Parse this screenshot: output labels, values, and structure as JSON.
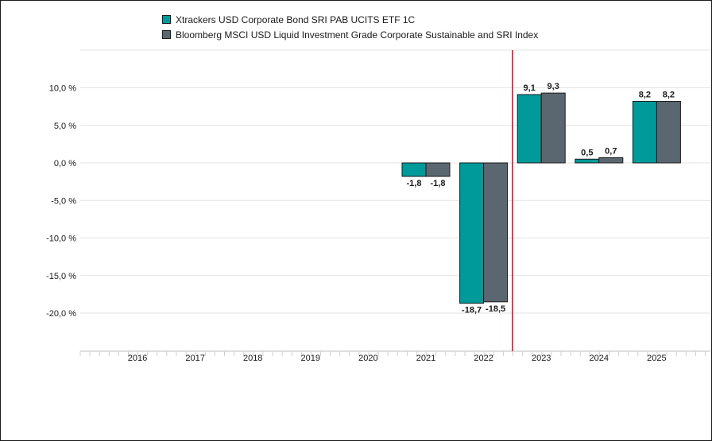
{
  "chart_data": {
    "type": "bar",
    "categories": [
      "2016",
      "2017",
      "2018",
      "2019",
      "2020",
      "2021",
      "2022",
      "2023",
      "2024",
      "2025"
    ],
    "series": [
      {
        "name": "Xtrackers USD Corporate Bond SRI PAB UCITS ETF 1C",
        "color": "#009a9a",
        "values": [
          null,
          null,
          null,
          null,
          null,
          -1.8,
          -18.7,
          9.1,
          0.5,
          8.2
        ],
        "labels": [
          null,
          null,
          null,
          null,
          null,
          "-1,8",
          "-18,7",
          "9,1",
          "0,5",
          "8,2"
        ]
      },
      {
        "name": "Bloomberg MSCI USD Liquid Investment Grade Corporate Sustainable and SRI Index",
        "color": "#5b6770",
        "values": [
          null,
          null,
          null,
          null,
          null,
          -1.8,
          -18.5,
          9.3,
          0.7,
          8.2
        ],
        "labels": [
          null,
          null,
          null,
          null,
          null,
          "-1,8",
          "-18,5",
          "9,3",
          "0,7",
          "8,2"
        ]
      }
    ],
    "yticks": [
      10,
      5,
      0,
      -5,
      -10,
      -15,
      -20
    ],
    "ytick_labels": [
      "10,0 %",
      "5,0 %",
      "0,0 %",
      "-5,0 %",
      "-10,0 %",
      "-15,0 %",
      "-20,0 %"
    ],
    "ylim": [
      -25,
      15
    ],
    "grid": true,
    "legend_position": "top",
    "divider_after_category": "2022",
    "divider_color": "#e0001b",
    "title": "",
    "xlabel": "",
    "ylabel": ""
  }
}
